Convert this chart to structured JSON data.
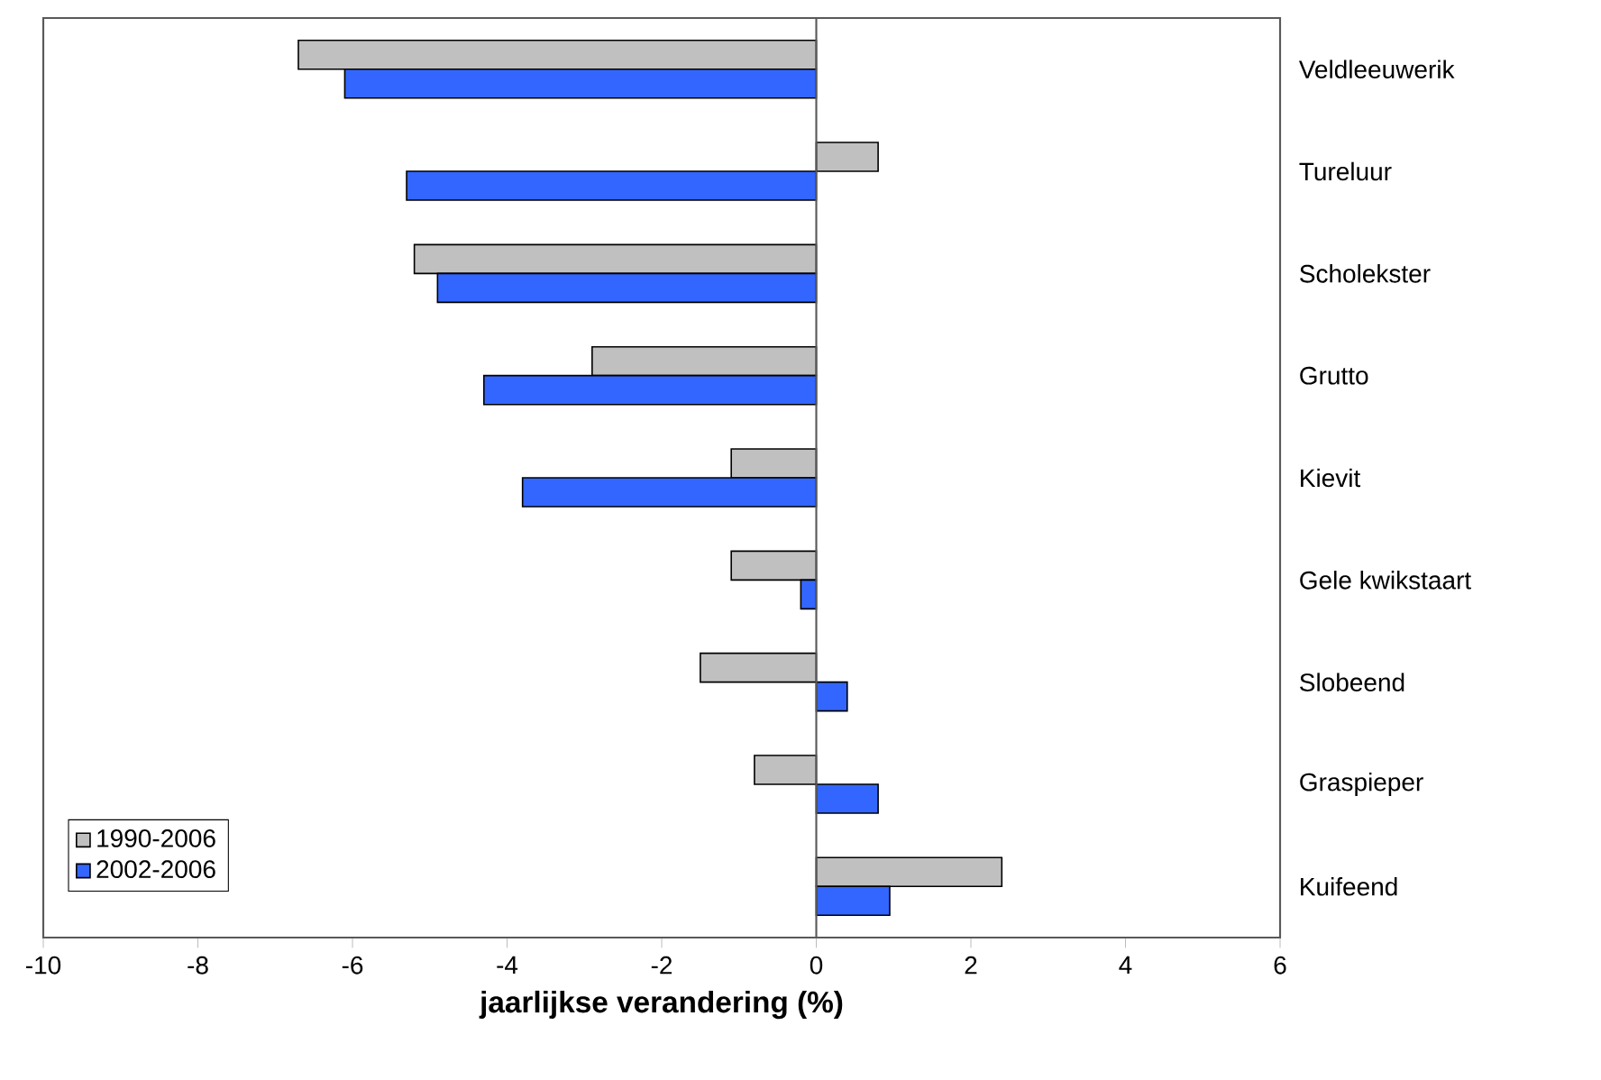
{
  "chart_data": {
    "type": "bar",
    "orientation": "horizontal",
    "xlabel": "jaarlijkse verandering (%)",
    "categories": [
      "Veldleeuwerik",
      "Tureluur",
      "Scholekster",
      "Grutto",
      "Kievit",
      "Gele kwikstaart",
      "Slobeend",
      "Graspieper",
      "Kuifeend"
    ],
    "series": [
      {
        "name": "1990-2006",
        "color": "#c0c0c0",
        "values": [
          -6.7,
          0.8,
          -5.2,
          -2.9,
          -1.1,
          -1.1,
          -1.5,
          -0.8,
          2.4
        ]
      },
      {
        "name": "2002-2006",
        "color": "#3366ff",
        "values": [
          -6.1,
          -5.3,
          -4.9,
          -4.3,
          -3.8,
          -0.2,
          0.4,
          0.8,
          0.95
        ]
      }
    ],
    "xlim": [
      -10,
      6
    ],
    "xticks": [
      -10,
      -8,
      -6,
      -4,
      -2,
      0,
      2,
      4,
      6
    ],
    "legend": "bottom left"
  }
}
